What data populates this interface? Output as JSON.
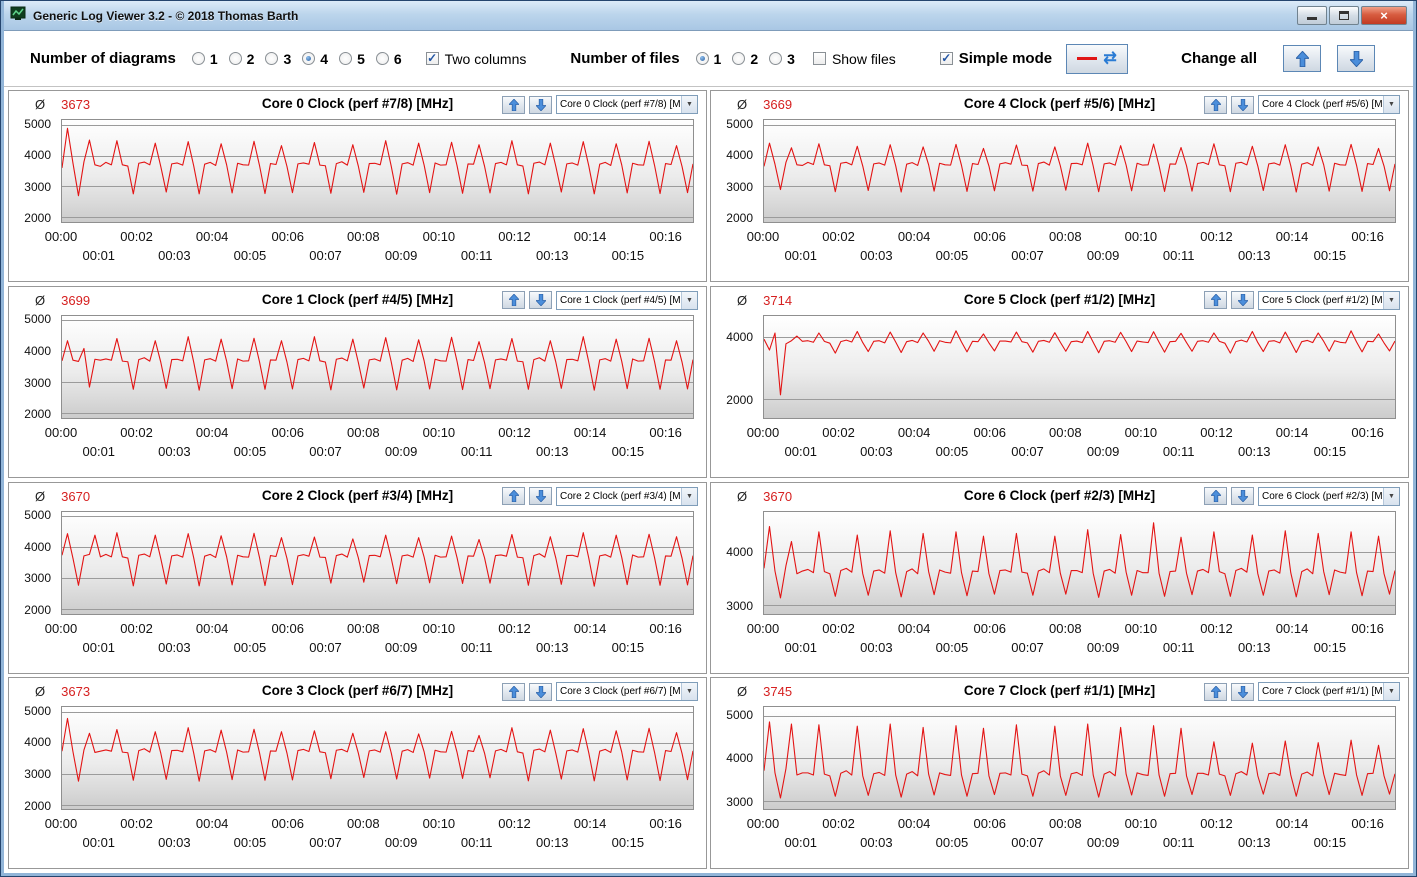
{
  "window": {
    "title": "Generic Log Viewer 3.2 - © 2018 Thomas Barth"
  },
  "toolbar": {
    "diagrams_label": "Number of diagrams",
    "diagram_options": [
      "1",
      "2",
      "3",
      "4",
      "5",
      "6"
    ],
    "diagrams_selected": "4",
    "two_columns_label": "Two columns",
    "two_columns_checked": true,
    "files_label": "Number of files",
    "file_options": [
      "1",
      "2",
      "3"
    ],
    "files_selected": "1",
    "show_files_label": "Show files",
    "show_files_checked": false,
    "simple_mode_label": "Simple mode",
    "simple_mode_checked": true,
    "change_all_label": "Change all",
    "refresh_icon": "⇄",
    "series_color": "#e01616"
  },
  "labels": {
    "avg_symbol": "Ø"
  },
  "x_axis": {
    "row1": [
      "00:00",
      "00:02",
      "00:04",
      "00:06",
      "00:08",
      "00:10",
      "00:12",
      "00:14",
      "00:16"
    ],
    "row2": [
      "00:01",
      "00:03",
      "00:05",
      "00:07",
      "00:09",
      "00:11",
      "00:13",
      "00:15"
    ],
    "total_minutes": 16.75
  },
  "motifs": {
    "A1": [
      3780,
      3700,
      4480,
      3700,
      3660,
      2760,
      3750,
      3790,
      3700,
      4400,
      3650,
      2820,
      3730,
      3760,
      3690,
      4450,
      3670,
      2760,
      3720,
      3780,
      3680,
      4380,
      3700,
      2790,
      3750,
      3700,
      3690,
      4460,
      3680,
      2770,
      3740,
      3710,
      4320,
      3650,
      2800,
      3730
    ],
    "A2": [
      3760,
      3720,
      4420,
      3690,
      3670,
      2780,
      3740,
      3800,
      3690,
      4350,
      3660,
      2810,
      3740,
      3750,
      3700,
      4480,
      3660,
      2750,
      3730,
      3770,
      3690,
      4400,
      3690,
      2800,
      3760,
      3690,
      3700,
      4430,
      3670,
      2780,
      3730,
      3720,
      4350,
      3660,
      2790,
      3740
    ],
    "B1": [
      3780,
      3710,
      4380,
      3700,
      3670,
      2830,
      3750,
      3780,
      3700,
      4300,
      3660,
      2870,
      3730,
      3760,
      3690,
      4350,
      3670,
      2820,
      3720,
      3770,
      3680,
      4280,
      3700,
      2850,
      3750,
      3700,
      3690,
      4360,
      3680,
      2840,
      3740,
      3710,
      4230,
      3660,
      2860,
      3730
    ],
    "B2": [
      3770,
      3720,
      4340,
      3690,
      3680,
      2850,
      3740,
      3790,
      3690,
      4280,
      3670,
      2880,
      3740,
      3750,
      3700,
      4400,
      3660,
      2830,
      3730,
      3760,
      3690,
      4320,
      3690,
      2860,
      3750,
      3690,
      3700,
      4370,
      3670,
      2840,
      3730,
      3720,
      4260,
      3670,
      2850,
      3740
    ],
    "C1": [
      3900,
      3850,
      4150,
      3880,
      3820,
      3500,
      3870,
      3920,
      3860,
      4200,
      3840,
      3550,
      3880,
      3900,
      3830,
      4180,
      3860,
      3520,
      3870,
      3910,
      3840,
      4150,
      3880,
      3560,
      3900,
      3850,
      3830,
      4220,
      3860,
      3540,
      3880,
      3870,
      4120,
      3830,
      3570,
      3890
    ],
    "C2": [
      3890,
      3860,
      4180,
      3870,
      3830,
      3530,
      3880,
      3910,
      3850,
      4160,
      3850,
      3560,
      3870,
      3890,
      3840,
      4200,
      3850,
      3510,
      3880,
      3900,
      3850,
      4170,
      3870,
      3550,
      3890,
      3860,
      3840,
      4190,
      3850,
      3530,
      3870,
      3880,
      4140,
      3840,
      3560,
      3880
    ],
    "D1": [
      3680,
      3620,
      4380,
      3640,
      3600,
      3180,
      3660,
      3700,
      3630,
      4320,
      3600,
      3200,
      3650,
      3670,
      3610,
      4400,
      3620,
      3170,
      3640,
      3690,
      3600,
      4350,
      3640,
      3210,
      3670,
      3630,
      3610,
      4380,
      3620,
      3190,
      3650,
      3640,
      4300,
      3600,
      3220,
      3660
    ],
    "D2": [
      3670,
      3630,
      4350,
      3630,
      3610,
      3200,
      3650,
      3690,
      3620,
      4300,
      3610,
      3220,
      3660,
      3660,
      3620,
      4420,
      3610,
      3160,
      3650,
      3680,
      3610,
      4330,
      3630,
      3200,
      3660,
      3620,
      3620,
      4550,
      3610,
      3180,
      3640,
      3650,
      4280,
      3610,
      3210,
      3650
    ],
    "E1": [
      3650,
      3600,
      4780,
      3620,
      3580,
      3100,
      3640,
      3700,
      3600,
      4750,
      3580,
      3120,
      3630,
      3660,
      3590,
      4800,
      3600,
      3080,
      3620,
      3680,
      3580,
      4720,
      3620,
      3130,
      3650,
      3610,
      3590,
      4760,
      3600,
      3100,
      3630,
      3640,
      4700,
      3580,
      3140,
      3640
    ],
    "E2": [
      3640,
      3600,
      4380,
      3620,
      3580,
      3120,
      3630,
      3680,
      3600,
      4350,
      3580,
      3150,
      3630,
      3650,
      3590,
      4400,
      3600,
      3100,
      3620,
      3670,
      3580,
      4360,
      3620,
      3140,
      3640,
      3610,
      3590,
      4420,
      3600,
      3120,
      3630,
      3640,
      4300,
      3580,
      3150,
      3630
    ],
    "O0": [
      3600,
      4880,
      3750,
      2700,
      3800,
      4500,
      3700,
      3650
    ],
    "O1": [
      3700,
      4350,
      3720,
      3680,
      4100,
      2850,
      3750,
      3720
    ],
    "O2": [
      3750,
      4450,
      3650,
      2780,
      3730,
      3780,
      4400,
      3700
    ],
    "O3": [
      3720,
      4780,
      3700,
      2750,
      3760,
      4300,
      3680,
      3720
    ],
    "O4": [
      3650,
      4400,
      3720,
      2900,
      3780,
      4250,
      3700,
      3680
    ],
    "O5": [
      3950,
      3600,
      4150,
      2150,
      3800,
      3900,
      4050,
      3880
    ],
    "O6": [
      3700,
      4480,
      3650,
      3150,
      3750,
      4200,
      3600,
      3650
    ],
    "O7": [
      3700,
      4850,
      3650,
      3060,
      3750,
      4800,
      3600,
      3650
    ]
  },
  "chart_data": [
    {
      "id": "core0",
      "type": "line",
      "avg": "3673",
      "title": "Core 0 Clock (perf #7/8) [MHz]",
      "dropdown_value": "Core 0 Clock (perf #7/8) [M",
      "yticks": [
        5000,
        4000,
        3000,
        2000
      ],
      "ymin": 1850,
      "ymax": 5150,
      "series": [
        "O0",
        "A1",
        "A2",
        "A1"
      ]
    },
    {
      "id": "core4",
      "type": "line",
      "avg": "3669",
      "title": "Core 4 Clock (perf #5/6) [MHz]",
      "dropdown_value": "Core 4 Clock (perf #5/6) [M",
      "yticks": [
        5000,
        4000,
        3000,
        2000
      ],
      "ymin": 1850,
      "ymax": 5150,
      "series": [
        "O4",
        "B1",
        "B2",
        "B1"
      ]
    },
    {
      "id": "core1",
      "type": "line",
      "avg": "3699",
      "title": "Core 1 Clock (perf #4/5) [MHz]",
      "dropdown_value": "Core 1 Clock (perf #4/5) [M",
      "yticks": [
        5000,
        4000,
        3000,
        2000
      ],
      "ymin": 1850,
      "ymax": 5150,
      "series": [
        "O1",
        "A2",
        "A1",
        "A2"
      ]
    },
    {
      "id": "core5",
      "type": "line",
      "avg": "3714",
      "title": "Core 5 Clock (perf #1/2) [MHz]",
      "dropdown_value": "Core 5 Clock (perf #1/2) [M",
      "yticks": [
        4000,
        2000
      ],
      "ymin": 1400,
      "ymax": 4700,
      "series": [
        "O5",
        "C1",
        "C2",
        "C1"
      ]
    },
    {
      "id": "core2",
      "type": "line",
      "avg": "3670",
      "title": "Core 2 Clock (perf #3/4) [MHz]",
      "dropdown_value": "Core 2 Clock (perf #3/4) [M",
      "yticks": [
        5000,
        4000,
        3000,
        2000
      ],
      "ymin": 1850,
      "ymax": 5150,
      "series": [
        "O2",
        "A1",
        "B2",
        "A2"
      ]
    },
    {
      "id": "core6",
      "type": "line",
      "avg": "3670",
      "title": "Core 6 Clock (perf #2/3) [MHz]",
      "dropdown_value": "Core 6 Clock (perf #2/3) [M",
      "yticks": [
        4000,
        3000
      ],
      "ymin": 2850,
      "ymax": 4750,
      "series": [
        "O6",
        "D1",
        "D2",
        "D1"
      ]
    },
    {
      "id": "core3",
      "type": "line",
      "avg": "3673",
      "title": "Core 3 Clock (perf #6/7) [MHz]",
      "dropdown_value": "Core 3 Clock (perf #6/7) [M",
      "yticks": [
        5000,
        4000,
        3000,
        2000
      ],
      "ymin": 1850,
      "ymax": 5150,
      "series": [
        "O3",
        "A2",
        "B1",
        "A1"
      ]
    },
    {
      "id": "core7",
      "type": "line",
      "avg": "3745",
      "title": "Core 7 Clock (perf #1/1) [MHz]",
      "dropdown_value": "Core 7 Clock (perf #1/1) [M",
      "yticks": [
        5000,
        4000,
        3000
      ],
      "ymin": 2800,
      "ymax": 5200,
      "series": [
        "O7",
        "E1",
        "E1",
        "E2"
      ]
    }
  ]
}
